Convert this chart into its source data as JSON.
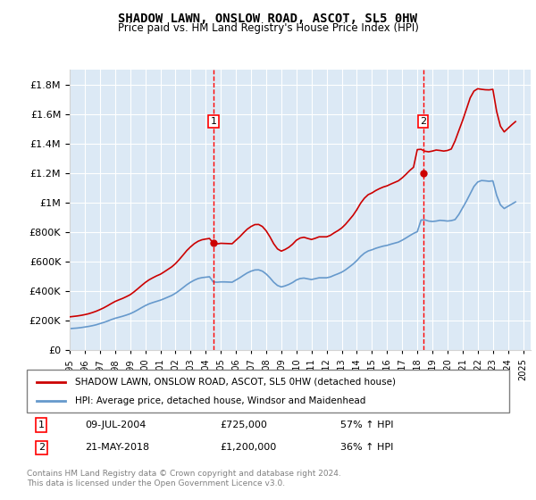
{
  "title": "SHADOW LAWN, ONSLOW ROAD, ASCOT, SL5 0HW",
  "subtitle": "Price paid vs. HM Land Registry's House Price Index (HPI)",
  "ylim": [
    0,
    1900000
  ],
  "yticks": [
    0,
    200000,
    400000,
    600000,
    800000,
    1000000,
    1200000,
    1400000,
    1600000,
    1800000
  ],
  "ytick_labels": [
    "£0",
    "£200K",
    "£400K",
    "£600K",
    "£800K",
    "£1M",
    "£1.2M",
    "£1.4M",
    "£1.6M",
    "£1.8M"
  ],
  "xlim_start": 1995.0,
  "xlim_end": 2025.5,
  "background_color": "#dce9f5",
  "plot_bg_color": "#dce9f5",
  "legend1_label": "SHADOW LAWN, ONSLOW ROAD, ASCOT, SL5 0HW (detached house)",
  "legend2_label": "HPI: Average price, detached house, Windsor and Maidenhead",
  "red_line_color": "#cc0000",
  "blue_line_color": "#6699cc",
  "annotation1": {
    "label": "1",
    "date_str": "09-JUL-2004",
    "price": "£725,000",
    "pct": "57% ↑ HPI",
    "x": 2004.52
  },
  "annotation2": {
    "label": "2",
    "date_str": "21-MAY-2018",
    "price": "£1,200,000",
    "pct": "36% ↑ HPI",
    "x": 2018.38
  },
  "footer": "Contains HM Land Registry data © Crown copyright and database right 2024.\nThis data is licensed under the Open Government Licence v3.0.",
  "hpi_years": [
    1995.0,
    1995.25,
    1995.5,
    1995.75,
    1996.0,
    1996.25,
    1996.5,
    1996.75,
    1997.0,
    1997.25,
    1997.5,
    1997.75,
    1998.0,
    1998.25,
    1998.5,
    1998.75,
    1999.0,
    1999.25,
    1999.5,
    1999.75,
    2000.0,
    2000.25,
    2000.5,
    2000.75,
    2001.0,
    2001.25,
    2001.5,
    2001.75,
    2002.0,
    2002.25,
    2002.5,
    2002.75,
    2003.0,
    2003.25,
    2003.5,
    2003.75,
    2004.0,
    2004.25,
    2004.5,
    2004.75,
    2005.0,
    2005.25,
    2005.5,
    2005.75,
    2006.0,
    2006.25,
    2006.5,
    2006.75,
    2007.0,
    2007.25,
    2007.5,
    2007.75,
    2008.0,
    2008.25,
    2008.5,
    2008.75,
    2009.0,
    2009.25,
    2009.5,
    2009.75,
    2010.0,
    2010.25,
    2010.5,
    2010.75,
    2011.0,
    2011.25,
    2011.5,
    2011.75,
    2012.0,
    2012.25,
    2012.5,
    2012.75,
    2013.0,
    2013.25,
    2013.5,
    2013.75,
    2014.0,
    2014.25,
    2014.5,
    2014.75,
    2015.0,
    2015.25,
    2015.5,
    2015.75,
    2016.0,
    2016.25,
    2016.5,
    2016.75,
    2017.0,
    2017.25,
    2017.5,
    2017.75,
    2018.0,
    2018.25,
    2018.5,
    2018.75,
    2019.0,
    2019.25,
    2019.5,
    2019.75,
    2020.0,
    2020.25,
    2020.5,
    2020.75,
    2021.0,
    2021.25,
    2021.5,
    2021.75,
    2022.0,
    2022.25,
    2022.5,
    2022.75,
    2023.0,
    2023.25,
    2023.5,
    2023.75,
    2024.0,
    2024.25,
    2024.5
  ],
  "hpi_values": [
    145000,
    147000,
    149000,
    152000,
    156000,
    160000,
    165000,
    171000,
    179000,
    187000,
    196000,
    206000,
    215000,
    222000,
    229000,
    237000,
    246000,
    258000,
    272000,
    287000,
    301000,
    313000,
    322000,
    330000,
    338000,
    348000,
    359000,
    370000,
    385000,
    403000,
    423000,
    443000,
    460000,
    474000,
    485000,
    491000,
    494000,
    497000,
    462000,
    460000,
    462000,
    462000,
    461000,
    460000,
    475000,
    490000,
    507000,
    523000,
    535000,
    543000,
    544000,
    535000,
    516000,
    490000,
    460000,
    438000,
    428000,
    435000,
    445000,
    458000,
    475000,
    485000,
    488000,
    483000,
    478000,
    484000,
    490000,
    490000,
    490000,
    496000,
    507000,
    517000,
    528000,
    544000,
    563000,
    583000,
    607000,
    635000,
    657000,
    672000,
    680000,
    690000,
    698000,
    705000,
    710000,
    718000,
    725000,
    732000,
    745000,
    760000,
    776000,
    791000,
    803000,
    882000,
    883000,
    875000,
    872000,
    875000,
    880000,
    878000,
    875000,
    878000,
    885000,
    920000,
    965000,
    1010000,
    1060000,
    1110000,
    1140000,
    1150000,
    1148000,
    1145000,
    1148000,
    1050000,
    985000,
    960000,
    975000,
    990000,
    1005000
  ],
  "red_years": [
    1995.0,
    1995.25,
    1995.5,
    1995.75,
    1996.0,
    1996.25,
    1996.5,
    1996.75,
    1997.0,
    1997.25,
    1997.5,
    1997.75,
    1998.0,
    1998.25,
    1998.5,
    1998.75,
    1999.0,
    1999.25,
    1999.5,
    1999.75,
    2000.0,
    2000.25,
    2000.5,
    2000.75,
    2001.0,
    2001.25,
    2001.5,
    2001.75,
    2002.0,
    2002.25,
    2002.5,
    2002.75,
    2003.0,
    2003.25,
    2003.5,
    2003.75,
    2004.0,
    2004.25,
    2004.5,
    2004.75,
    2005.0,
    2005.25,
    2005.5,
    2005.75,
    2006.0,
    2006.25,
    2006.5,
    2006.75,
    2007.0,
    2007.25,
    2007.5,
    2007.75,
    2008.0,
    2008.25,
    2008.5,
    2008.75,
    2009.0,
    2009.25,
    2009.5,
    2009.75,
    2010.0,
    2010.25,
    2010.5,
    2010.75,
    2011.0,
    2011.25,
    2011.5,
    2011.75,
    2012.0,
    2012.25,
    2012.5,
    2012.75,
    2013.0,
    2013.25,
    2013.5,
    2013.75,
    2014.0,
    2014.25,
    2014.5,
    2014.75,
    2015.0,
    2015.25,
    2015.5,
    2015.75,
    2016.0,
    2016.25,
    2016.5,
    2016.75,
    2017.0,
    2017.25,
    2017.5,
    2017.75,
    2018.0,
    2018.25,
    2018.5,
    2018.75,
    2019.0,
    2019.25,
    2019.5,
    2019.75,
    2020.0,
    2020.25,
    2020.5,
    2020.75,
    2021.0,
    2021.25,
    2021.5,
    2021.75,
    2022.0,
    2022.25,
    2022.5,
    2022.75,
    2023.0,
    2023.25,
    2023.5,
    2023.75,
    2024.0,
    2024.25,
    2024.5
  ],
  "red_values": [
    225000,
    228000,
    231000,
    235000,
    240000,
    246000,
    254000,
    263000,
    274000,
    286000,
    300000,
    315000,
    329000,
    340000,
    350000,
    362000,
    375000,
    394000,
    415000,
    437000,
    458000,
    476000,
    490000,
    503000,
    514000,
    530000,
    547000,
    564000,
    586000,
    614000,
    644000,
    675000,
    700000,
    722000,
    738000,
    748000,
    753000,
    757000,
    725000,
    720000,
    724000,
    723000,
    722000,
    721000,
    745000,
    768000,
    795000,
    820000,
    838000,
    851000,
    852000,
    838000,
    809000,
    768000,
    721000,
    686000,
    671000,
    682000,
    697000,
    718000,
    745000,
    760000,
    765000,
    757000,
    750000,
    758000,
    768000,
    768000,
    768000,
    778000,
    795000,
    810000,
    828000,
    853000,
    883000,
    914000,
    952000,
    996000,
    1030000,
    1054000,
    1066000,
    1082000,
    1095000,
    1106000,
    1114000,
    1126000,
    1137000,
    1148000,
    1168000,
    1192000,
    1218000,
    1240000,
    1360000,
    1362000,
    1349000,
    1345000,
    1350000,
    1357000,
    1354000,
    1350000,
    1354000,
    1364000,
    1419000,
    1489000,
    1558000,
    1634000,
    1711000,
    1757000,
    1773000,
    1769000,
    1766000,
    1765000,
    1769000,
    1619000,
    1519000,
    1480000,
    1504000,
    1528000,
    1550000
  ]
}
